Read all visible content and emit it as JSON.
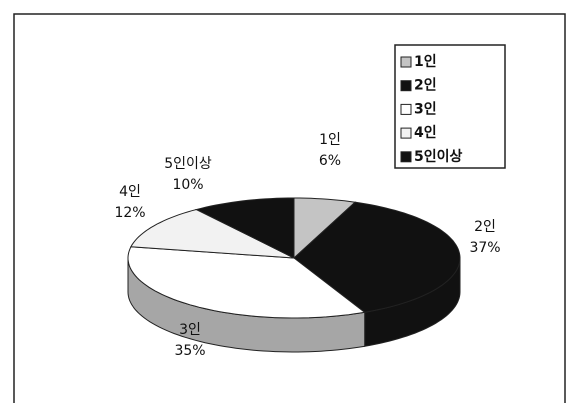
{
  "chart_data": {
    "type": "pie",
    "three_d": true,
    "categories": [
      "1인",
      "2인",
      "3인",
      "4인",
      "5인이상"
    ],
    "values": [
      6,
      37,
      35,
      12,
      10
    ],
    "value_labels": [
      "6%",
      "37%",
      "35%",
      "12%",
      "10%"
    ],
    "colors": [
      "#c4c4c4",
      "#111111",
      "#ffffff",
      "#f2f2f2",
      "#111111"
    ],
    "side_colors": [
      "#9a9a9a",
      "#111111",
      "#a6a6a6",
      "#a6a6a6",
      "#111111"
    ],
    "legend": "top-right"
  }
}
